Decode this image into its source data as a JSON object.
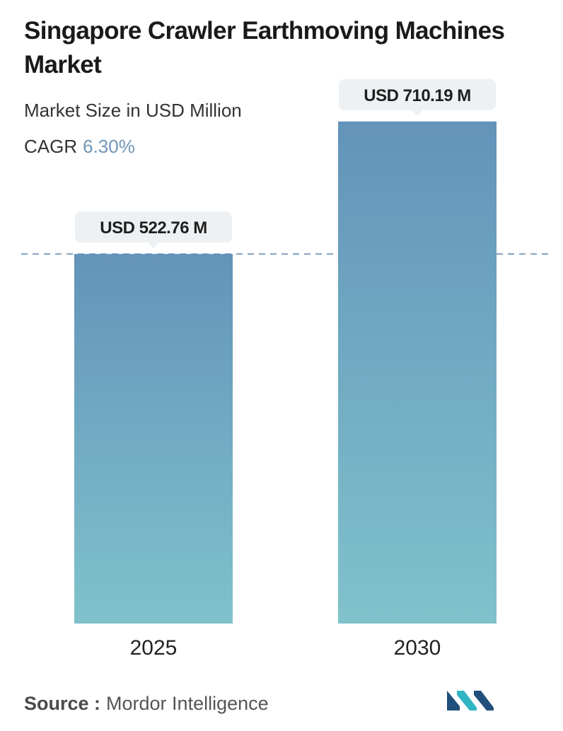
{
  "header": {
    "title": "Singapore Crawler Earthmoving Machines Market",
    "subtitle": "Market Size in USD Million",
    "cagr_label": "CAGR",
    "cagr_value": "6.30%"
  },
  "colors": {
    "bar_top": "#6393ba",
    "bar_bottom": "#80c2cb",
    "label_bg": "#eef1f3",
    "dashed_line": "#5c86ad",
    "cagr_accent": "#6f96b7",
    "logo_dark": "#1f4f7a",
    "logo_light": "#2fb5c4"
  },
  "chart_data": {
    "type": "bar",
    "title": "Singapore Crawler Earthmoving Machines Market",
    "subtitle": "Market Size in USD Million",
    "categories": [
      "2025",
      "2030"
    ],
    "values": [
      522.76,
      710.19
    ],
    "data_labels": [
      "USD 522.76 M",
      "USD 710.19 M"
    ],
    "unit": "USD Million",
    "cagr": "6.30%",
    "reference_line": 522.76,
    "grid": false,
    "legend": "none"
  },
  "source": {
    "label": "Source :",
    "value": "Mordor Intelligence"
  },
  "logo": {
    "icon": "mordor-intelligence-logo-icon"
  }
}
